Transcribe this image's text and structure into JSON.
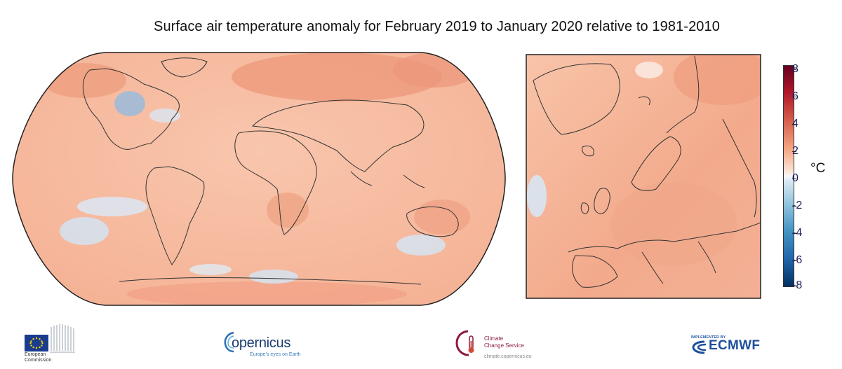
{
  "title": "Surface air temperature anomaly for February 2019 to January 2020 relative to 1981-2010",
  "colorbar": {
    "unit": "°C",
    "ticks": [
      "8",
      "6",
      "4",
      "2",
      "0",
      "-2",
      "-4",
      "-6",
      "-8"
    ],
    "range": [
      -8,
      8
    ],
    "colors": {
      "max": "#67001f",
      "warm": "#d6604d",
      "neutral": "#f7f7f7",
      "cool": "#4393c3",
      "min": "#053061"
    }
  },
  "maps": {
    "world": {
      "projection": "Robinson",
      "dominant_anomaly": "warm",
      "fill_color": "#f6b99e"
    },
    "europe": {
      "dominant_anomaly": "warm",
      "fill_color": "#f4b095"
    }
  },
  "logos": {
    "ec": {
      "line1": "European",
      "line2": "Commission"
    },
    "copernicus": {
      "word": "opernicus",
      "tagline": "Europe's eyes on Earth"
    },
    "c3s": {
      "line1": "Climate",
      "line2": "Change Service",
      "url": "climate.copernicus.eu"
    },
    "ecmwf": {
      "implemented": "IMPLEMENTED BY",
      "word": "ECMWF"
    }
  }
}
